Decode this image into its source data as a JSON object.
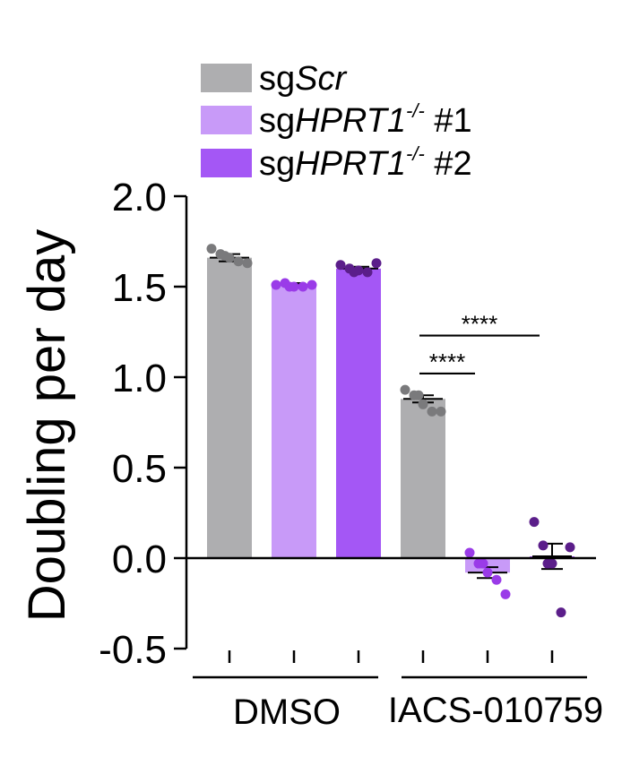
{
  "chart_data": {
    "type": "bar",
    "ylabel": "Doubling per day",
    "ylim": [
      -0.5,
      2.0
    ],
    "yticks": [
      "-0.5",
      "0.0",
      "0.5",
      "1.0",
      "1.5",
      "2.0"
    ],
    "group_labels": [
      "DMSO",
      "IACS-010759"
    ],
    "legend": [
      {
        "prefix": "sg",
        "italic": "Scr",
        "sup": "",
        "suffix": "",
        "color": "#aeaeb0"
      },
      {
        "prefix": "sg",
        "italic": "HPRT1",
        "sup": "-/-",
        "suffix": " #1",
        "color": "#c89af8"
      },
      {
        "prefix": "sg",
        "italic": "HPRT1",
        "sup": "-/-",
        "suffix": " #2",
        "color": "#a457f5"
      }
    ],
    "bars": [
      {
        "group": "DMSO",
        "series": 0,
        "value": 1.66,
        "points": [
          1.71,
          1.68,
          1.66,
          1.64,
          1.63,
          1.67
        ]
      },
      {
        "group": "DMSO",
        "series": 1,
        "value": 1.51,
        "points": [
          1.51,
          1.52,
          1.5,
          1.5,
          1.51,
          1.5
        ]
      },
      {
        "group": "DMSO",
        "series": 2,
        "value": 1.6,
        "points": [
          1.62,
          1.6,
          1.59,
          1.58,
          1.63,
          1.58
        ]
      },
      {
        "group": "IACS-010759",
        "series": 0,
        "value": 0.88,
        "points": [
          0.93,
          0.9,
          0.85,
          0.81,
          0.81,
          0.9
        ]
      },
      {
        "group": "IACS-010759",
        "series": 1,
        "value": -0.08,
        "points": [
          0.03,
          -0.03,
          -0.08,
          -0.12,
          -0.2,
          -0.03
        ]
      },
      {
        "group": "IACS-010759",
        "series": 2,
        "value": 0.01,
        "points": [
          0.2,
          0.07,
          -0.03,
          -0.3,
          0.06,
          -0.03
        ]
      }
    ],
    "errors": [
      0.02,
      0.01,
      0.01,
      0.02,
      0.03,
      0.07
    ],
    "significance": [
      {
        "from": 3,
        "to": 4,
        "y": 1.02,
        "label": "****"
      },
      {
        "from": 3,
        "to": 5,
        "y": 1.23,
        "label": "****"
      }
    ],
    "point_colors": [
      "#7a7a7c",
      "#9a3be8",
      "#5b1e8a"
    ]
  }
}
